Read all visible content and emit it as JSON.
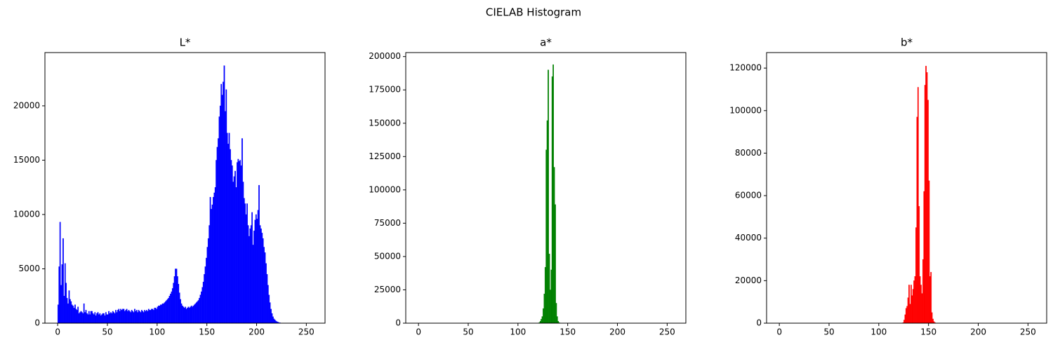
{
  "title": "CIELAB Histogram",
  "chart_data": [
    {
      "type": "histogram",
      "title": "L*",
      "color": "#0000ff",
      "xlim": [
        -12.8,
        268.8
      ],
      "xticks": [
        0,
        50,
        100,
        150,
        200,
        250
      ],
      "ylim": [
        0,
        24900
      ],
      "yticks": [
        0,
        5000,
        10000,
        15000,
        20000
      ],
      "bins": [
        0,
        1,
        2,
        3,
        4,
        5,
        6,
        7,
        8,
        9,
        10,
        11,
        12,
        13,
        14,
        15,
        16,
        17,
        18,
        19,
        20,
        21,
        22,
        23,
        24,
        25,
        26,
        27,
        28,
        29,
        30,
        31,
        32,
        33,
        34,
        35,
        36,
        37,
        38,
        39,
        40,
        41,
        42,
        43,
        44,
        45,
        46,
        47,
        48,
        49,
        50,
        51,
        52,
        53,
        54,
        55,
        56,
        57,
        58,
        59,
        60,
        61,
        62,
        63,
        64,
        65,
        66,
        67,
        68,
        69,
        70,
        71,
        72,
        73,
        74,
        75,
        76,
        77,
        78,
        79,
        80,
        81,
        82,
        83,
        84,
        85,
        86,
        87,
        88,
        89,
        90,
        91,
        92,
        93,
        94,
        95,
        96,
        97,
        98,
        99,
        100,
        101,
        102,
        103,
        104,
        105,
        106,
        107,
        108,
        109,
        110,
        111,
        112,
        113,
        114,
        115,
        116,
        117,
        118,
        119,
        120,
        121,
        122,
        123,
        124,
        125,
        126,
        127,
        128,
        129,
        130,
        131,
        132,
        133,
        134,
        135,
        136,
        137,
        138,
        139,
        140,
        141,
        142,
        143,
        144,
        145,
        146,
        147,
        148,
        149,
        150,
        151,
        152,
        153,
        154,
        155,
        156,
        157,
        158,
        159,
        160,
        161,
        162,
        163,
        164,
        165,
        166,
        167,
        168,
        169,
        170,
        171,
        172,
        173,
        174,
        175,
        176,
        177,
        178,
        179,
        180,
        181,
        182,
        183,
        184,
        185,
        186,
        187,
        188,
        189,
        190,
        191,
        192,
        193,
        194,
        195,
        196,
        197,
        198,
        199,
        200,
        201,
        202,
        203,
        204,
        205,
        206,
        207,
        208,
        209,
        210,
        211,
        212,
        213,
        214,
        215,
        216,
        217,
        218,
        219,
        220,
        221,
        222,
        223,
        224,
        225,
        226
      ],
      "values": [
        1700,
        5200,
        9300,
        3500,
        5400,
        7800,
        2500,
        5500,
        3700,
        2300,
        1800,
        3000,
        2200,
        2000,
        1700,
        1600,
        1400,
        1700,
        1300,
        1200,
        1500,
        900,
        1000,
        1100,
        1000,
        900,
        1800,
        1000,
        1200,
        900,
        800,
        1100,
        800,
        1100,
        1100,
        900,
        800,
        1000,
        700,
        900,
        1000,
        800,
        900,
        700,
        800,
        900,
        900,
        700,
        1000,
        800,
        800,
        1100,
        900,
        1000,
        900,
        1100,
        1000,
        900,
        1200,
        1000,
        1200,
        1300,
        1100,
        1300,
        1200,
        1300,
        1300,
        1100,
        1200,
        1300,
        1100,
        1200,
        1100,
        1000,
        1200,
        1100,
        1000,
        1300,
        1100,
        1200,
        1000,
        1200,
        1100,
        1000,
        1200,
        1100,
        1000,
        1200,
        1100,
        1200,
        1100,
        1300,
        1200,
        1200,
        1300,
        1300,
        1200,
        1400,
        1400,
        1300,
        1500,
        1600,
        1600,
        1700,
        1700,
        1800,
        1800,
        1900,
        2000,
        2100,
        2200,
        2300,
        2500,
        2700,
        2900,
        3200,
        3700,
        4300,
        5000,
        5000,
        4300,
        3600,
        2800,
        2200,
        1800,
        1600,
        1500,
        1400,
        1500,
        1300,
        1400,
        1500,
        1400,
        1500,
        1600,
        1500,
        1600,
        1700,
        1800,
        1900,
        2000,
        2100,
        2300,
        2600,
        2900,
        3300,
        3800,
        4500,
        5200,
        6000,
        7000,
        7800,
        9000,
        11600,
        10500,
        10900,
        11600,
        12000,
        12500,
        15000,
        16200,
        17000,
        19000,
        20000,
        22000,
        21000,
        22200,
        23700,
        19500,
        21500,
        17500,
        16500,
        17500,
        16000,
        15000,
        14500,
        13000,
        13500,
        14000,
        12500,
        14800,
        15100,
        14900,
        15000,
        14500,
        17000,
        13000,
        11500,
        11000,
        10000,
        11000,
        9000,
        8000,
        8700,
        9000,
        10200,
        7200,
        8500,
        9500,
        10000,
        9600,
        10400,
        12700,
        9000,
        8700,
        8300,
        7800,
        7000,
        6500,
        5500,
        4500,
        3500,
        2600,
        1900,
        1300,
        900,
        600,
        400,
        300,
        200,
        150,
        100,
        60,
        40,
        20,
        10
      ]
    },
    {
      "type": "histogram",
      "title": "a*",
      "color": "#008000",
      "xlim": [
        -12.8,
        268.8
      ],
      "xticks": [
        0,
        50,
        100,
        150,
        200,
        250
      ],
      "ylim": [
        0,
        203000
      ],
      "yticks": [
        0,
        25000,
        50000,
        75000,
        100000,
        125000,
        150000,
        175000,
        200000
      ],
      "bins": [
        120,
        121,
        122,
        123,
        124,
        125,
        126,
        127,
        128,
        129,
        130,
        131,
        132,
        133,
        134,
        135,
        136,
        137,
        138,
        139,
        140,
        141,
        142
      ],
      "values": [
        200,
        500,
        1500,
        3000,
        5000,
        11000,
        22000,
        42000,
        130000,
        152000,
        190000,
        52000,
        25000,
        40000,
        185000,
        194000,
        117000,
        89000,
        15000,
        5000,
        1500,
        500
      ]
    },
    {
      "type": "histogram",
      "title": "b*",
      "color": "#ff0000",
      "xlim": [
        -12.8,
        268.8
      ],
      "xticks": [
        0,
        50,
        100,
        150,
        200,
        250
      ],
      "ylim": [
        0,
        127300
      ],
      "yticks": [
        0,
        20000,
        40000,
        60000,
        80000,
        100000,
        120000
      ],
      "bins": [
        124,
        125,
        126,
        127,
        128,
        129,
        130,
        131,
        132,
        133,
        134,
        135,
        136,
        137,
        138,
        139,
        140,
        141,
        142,
        143,
        144,
        145,
        146,
        147,
        148,
        149,
        150,
        151,
        152,
        153,
        154,
        155,
        156,
        157,
        158
      ],
      "values": [
        300,
        1500,
        4000,
        7000,
        8000,
        12000,
        18000,
        9000,
        18000,
        13000,
        16000,
        20000,
        22000,
        45000,
        97000,
        111000,
        55000,
        22000,
        18000,
        14000,
        30000,
        62000,
        112000,
        121000,
        118000,
        105000,
        67000,
        22000,
        24000,
        5000,
        2000,
        800,
        300,
        100
      ]
    }
  ]
}
